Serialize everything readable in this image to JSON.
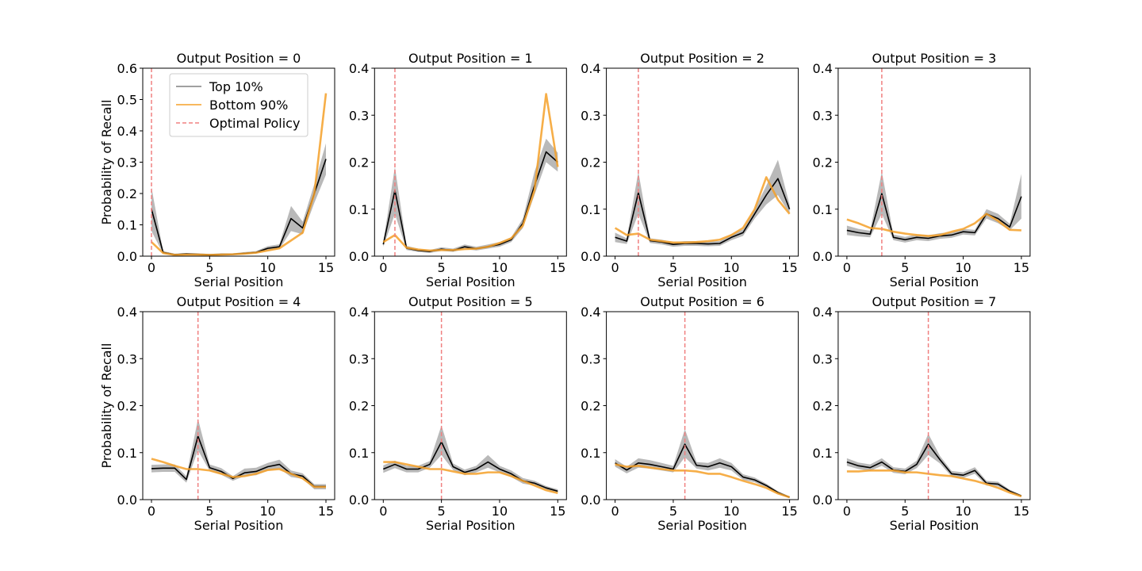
{
  "chart_data": [
    {
      "type": "line",
      "title": "Output Position = 0",
      "xlabel": "Serial Position",
      "ylabel": "Probability of Recall",
      "x": [
        0,
        1,
        2,
        3,
        4,
        5,
        6,
        7,
        8,
        9,
        10,
        11,
        12,
        13,
        14,
        15
      ],
      "xlim": [
        -0.75,
        15.75
      ],
      "xticks": [
        0,
        5,
        10,
        15
      ],
      "ylim": [
        0,
        0.6
      ],
      "yticks": [
        {
          "value": 0,
          "label": "0.0"
        },
        0.1,
        0.2,
        0.3,
        0.4,
        0.5,
        0.6
      ],
      "legend": "upper center",
      "series": [
        {
          "name": "Top 10%",
          "color": "#000000",
          "band_color": "#808080",
          "values": [
            0.15,
            0.012,
            0.005,
            0.007,
            0.006,
            0.004,
            0.006,
            0.006,
            0.009,
            0.012,
            0.025,
            0.03,
            0.12,
            0.09,
            0.2,
            0.31
          ],
          "band": {
            "lower": [
              0.08,
              0.008,
              0.003,
              0.004,
              0.004,
              0.002,
              0.004,
              0.004,
              0.006,
              0.009,
              0.018,
              0.022,
              0.08,
              0.07,
              0.17,
              0.26
            ],
            "upper": [
              0.22,
              0.016,
              0.008,
              0.01,
              0.009,
              0.007,
              0.009,
              0.009,
              0.013,
              0.016,
              0.032,
              0.038,
              0.16,
              0.11,
              0.23,
              0.36
            ]
          }
        },
        {
          "name": "Bottom 90%",
          "color": "#f5a028",
          "values": [
            0.045,
            0.01,
            0.004,
            0.005,
            0.005,
            0.004,
            0.005,
            0.006,
            0.008,
            0.011,
            0.018,
            0.025,
            0.05,
            0.075,
            0.2,
            0.52
          ]
        }
      ],
      "vline": {
        "name": "Optimal Policy",
        "x": 0,
        "color": "#f08080"
      }
    },
    {
      "type": "line",
      "title": "Output Position = 1",
      "xlabel": "Serial Position",
      "x": [
        0,
        1,
        2,
        3,
        4,
        5,
        6,
        7,
        8,
        9,
        10,
        11,
        12,
        13,
        14,
        15
      ],
      "xlim": [
        -0.75,
        15.75
      ],
      "xticks": [
        0,
        5,
        10,
        15
      ],
      "ylim": [
        0,
        0.4
      ],
      "yticks": [
        {
          "value": 0,
          "label": "0.0"
        },
        0.1,
        0.2,
        0.3,
        0.4
      ],
      "series": [
        {
          "color": "#000000",
          "band_color": "#808080",
          "values": [
            0.025,
            0.14,
            0.017,
            0.012,
            0.01,
            0.015,
            0.012,
            0.02,
            0.016,
            0.02,
            0.025,
            0.035,
            0.07,
            0.15,
            0.222,
            0.2
          ],
          "band": {
            "lower": [
              0.02,
              0.09,
              0.013,
              0.009,
              0.007,
              0.011,
              0.009,
              0.015,
              0.012,
              0.016,
              0.02,
              0.03,
              0.06,
              0.13,
              0.2,
              0.18
            ],
            "upper": [
              0.03,
              0.19,
              0.022,
              0.016,
              0.013,
              0.019,
              0.016,
              0.025,
              0.02,
              0.025,
              0.03,
              0.04,
              0.08,
              0.18,
              0.25,
              0.22
            ]
          }
        },
        {
          "color": "#f5a028",
          "values": [
            0.03,
            0.045,
            0.018,
            0.014,
            0.012,
            0.013,
            0.013,
            0.015,
            0.016,
            0.02,
            0.028,
            0.038,
            0.065,
            0.14,
            0.345,
            0.19
          ]
        }
      ],
      "vline": {
        "x": 1,
        "color": "#f08080"
      }
    },
    {
      "type": "line",
      "title": "Output Position = 2",
      "xlabel": "Serial Position",
      "x": [
        0,
        1,
        2,
        3,
        4,
        5,
        6,
        7,
        8,
        9,
        10,
        11,
        12,
        13,
        14,
        15
      ],
      "xlim": [
        -0.75,
        15.75
      ],
      "xticks": [
        0,
        5,
        10,
        15
      ],
      "ylim": [
        0,
        0.4
      ],
      "yticks": [
        {
          "value": 0,
          "label": "0.0"
        },
        0.1,
        0.2,
        0.3,
        0.4
      ],
      "series": [
        {
          "color": "#000000",
          "band_color": "#808080",
          "values": [
            0.04,
            0.032,
            0.135,
            0.033,
            0.03,
            0.025,
            0.027,
            0.027,
            0.026,
            0.027,
            0.04,
            0.05,
            0.09,
            0.13,
            0.165,
            0.1
          ],
          "band": {
            "lower": [
              0.03,
              0.026,
              0.09,
              0.028,
              0.025,
              0.02,
              0.022,
              0.022,
              0.021,
              0.022,
              0.034,
              0.043,
              0.08,
              0.11,
              0.13,
              0.09
            ],
            "upper": [
              0.05,
              0.038,
              0.18,
              0.038,
              0.035,
              0.03,
              0.032,
              0.032,
              0.031,
              0.032,
              0.046,
              0.057,
              0.1,
              0.15,
              0.205,
              0.11
            ]
          }
        },
        {
          "color": "#f5a028",
          "values": [
            0.06,
            0.045,
            0.048,
            0.035,
            0.032,
            0.029,
            0.029,
            0.03,
            0.032,
            0.035,
            0.045,
            0.06,
            0.1,
            0.168,
            0.12,
            0.09
          ]
        }
      ],
      "vline": {
        "x": 2,
        "color": "#f08080"
      }
    },
    {
      "type": "line",
      "title": "Output Position = 3",
      "xlabel": "Serial Position",
      "x": [
        0,
        1,
        2,
        3,
        4,
        5,
        6,
        7,
        8,
        9,
        10,
        11,
        12,
        13,
        14,
        15
      ],
      "xlim": [
        -0.75,
        15.75
      ],
      "xticks": [
        0,
        5,
        10,
        15
      ],
      "ylim": [
        0,
        0.4
      ],
      "yticks": [
        {
          "value": 0,
          "label": "0.0"
        },
        0.1,
        0.2,
        0.3,
        0.4
      ],
      "series": [
        {
          "color": "#000000",
          "band_color": "#808080",
          "values": [
            0.055,
            0.05,
            0.047,
            0.133,
            0.04,
            0.035,
            0.04,
            0.038,
            0.043,
            0.045,
            0.052,
            0.05,
            0.09,
            0.08,
            0.062,
            0.127
          ],
          "band": {
            "lower": [
              0.045,
              0.042,
              0.04,
              0.09,
              0.034,
              0.029,
              0.034,
              0.032,
              0.037,
              0.039,
              0.046,
              0.044,
              0.08,
              0.07,
              0.055,
              0.08
            ],
            "upper": [
              0.065,
              0.058,
              0.054,
              0.18,
              0.046,
              0.041,
              0.046,
              0.044,
              0.049,
              0.051,
              0.058,
              0.056,
              0.1,
              0.09,
              0.069,
              0.175
            ]
          }
        },
        {
          "color": "#f5a028",
          "values": [
            0.078,
            0.07,
            0.06,
            0.058,
            0.052,
            0.048,
            0.045,
            0.043,
            0.045,
            0.052,
            0.058,
            0.07,
            0.09,
            0.075,
            0.056,
            0.055
          ]
        }
      ],
      "vline": {
        "x": 3,
        "color": "#f08080"
      }
    },
    {
      "type": "line",
      "title": "Output Position = 4",
      "xlabel": "Serial Position",
      "ylabel": "Probability of Recall",
      "x": [
        0,
        1,
        2,
        3,
        4,
        5,
        6,
        7,
        8,
        9,
        10,
        11,
        12,
        13,
        14,
        15
      ],
      "xlim": [
        -0.75,
        15.75
      ],
      "xticks": [
        0,
        5,
        10,
        15
      ],
      "ylim": [
        0,
        0.4
      ],
      "yticks": [
        {
          "value": 0,
          "label": "0.0"
        },
        0.1,
        0.2,
        0.3,
        0.4
      ],
      "series": [
        {
          "color": "#000000",
          "band_color": "#808080",
          "values": [
            0.066,
            0.067,
            0.067,
            0.043,
            0.135,
            0.068,
            0.06,
            0.045,
            0.057,
            0.06,
            0.07,
            0.075,
            0.055,
            0.05,
            0.028,
            0.028
          ],
          "band": {
            "lower": [
              0.058,
              0.059,
              0.059,
              0.036,
              0.105,
              0.061,
              0.053,
              0.04,
              0.05,
              0.052,
              0.062,
              0.066,
              0.048,
              0.044,
              0.022,
              0.022
            ],
            "upper": [
              0.074,
              0.075,
              0.075,
              0.05,
              0.172,
              0.075,
              0.067,
              0.05,
              0.066,
              0.068,
              0.078,
              0.085,
              0.062,
              0.056,
              0.033,
              0.033
            ]
          }
        },
        {
          "color": "#f5a028",
          "values": [
            0.087,
            0.08,
            0.072,
            0.065,
            0.065,
            0.062,
            0.055,
            0.048,
            0.05,
            0.055,
            0.063,
            0.065,
            0.055,
            0.045,
            0.027,
            0.027
          ]
        }
      ],
      "vline": {
        "x": 4,
        "color": "#f08080"
      }
    },
    {
      "type": "line",
      "title": "Output Position = 5",
      "xlabel": "Serial Position",
      "x": [
        0,
        1,
        2,
        3,
        4,
        5,
        6,
        7,
        8,
        9,
        10,
        11,
        12,
        13,
        14,
        15
      ],
      "xlim": [
        -0.75,
        15.75
      ],
      "xticks": [
        0,
        5,
        10,
        15
      ],
      "ylim": [
        0,
        0.4
      ],
      "yticks": [
        {
          "value": 0,
          "label": "0.0"
        },
        0.1,
        0.2,
        0.3,
        0.4
      ],
      "series": [
        {
          "color": "#000000",
          "band_color": "#808080",
          "values": [
            0.065,
            0.075,
            0.065,
            0.065,
            0.075,
            0.123,
            0.07,
            0.058,
            0.065,
            0.08,
            0.065,
            0.055,
            0.04,
            0.035,
            0.025,
            0.018
          ],
          "band": {
            "lower": [
              0.057,
              0.067,
              0.058,
              0.058,
              0.068,
              0.095,
              0.063,
              0.052,
              0.058,
              0.068,
              0.058,
              0.048,
              0.034,
              0.03,
              0.021,
              0.014
            ],
            "upper": [
              0.073,
              0.083,
              0.072,
              0.072,
              0.082,
              0.158,
              0.077,
              0.064,
              0.072,
              0.095,
              0.072,
              0.062,
              0.046,
              0.04,
              0.029,
              0.022
            ]
          }
        },
        {
          "color": "#f5a028",
          "values": [
            0.08,
            0.08,
            0.075,
            0.07,
            0.065,
            0.065,
            0.06,
            0.055,
            0.055,
            0.058,
            0.058,
            0.05,
            0.04,
            0.03,
            0.02,
            0.014
          ]
        }
      ],
      "vline": {
        "x": 5,
        "color": "#f08080"
      }
    },
    {
      "type": "line",
      "title": "Output Position = 6",
      "xlabel": "Serial Position",
      "x": [
        0,
        1,
        2,
        3,
        4,
        5,
        6,
        7,
        8,
        9,
        10,
        11,
        12,
        13,
        14,
        15
      ],
      "xlim": [
        -0.75,
        15.75
      ],
      "xticks": [
        0,
        5,
        10,
        15
      ],
      "ylim": [
        0,
        0.4
      ],
      "yticks": [
        {
          "value": 0,
          "label": "0.0"
        },
        0.1,
        0.2,
        0.3,
        0.4
      ],
      "series": [
        {
          "color": "#000000",
          "band_color": "#808080",
          "values": [
            0.078,
            0.063,
            0.078,
            0.075,
            0.07,
            0.065,
            0.118,
            0.073,
            0.07,
            0.078,
            0.07,
            0.048,
            0.042,
            0.03,
            0.015,
            0.005
          ],
          "band": {
            "lower": [
              0.07,
              0.056,
              0.068,
              0.066,
              0.062,
              0.058,
              0.09,
              0.066,
              0.062,
              0.068,
              0.062,
              0.042,
              0.037,
              0.026,
              0.012,
              0.003
            ],
            "upper": [
              0.086,
              0.07,
              0.088,
              0.084,
              0.078,
              0.072,
              0.15,
              0.08,
              0.078,
              0.088,
              0.078,
              0.054,
              0.047,
              0.034,
              0.018,
              0.007
            ]
          }
        },
        {
          "color": "#f5a028",
          "values": [
            0.075,
            0.07,
            0.072,
            0.068,
            0.065,
            0.062,
            0.062,
            0.06,
            0.055,
            0.055,
            0.048,
            0.04,
            0.033,
            0.025,
            0.013,
            0.005
          ]
        }
      ],
      "vline": {
        "x": 6,
        "color": "#f08080"
      }
    },
    {
      "type": "line",
      "title": "Output Position = 7",
      "xlabel": "Serial Position",
      "x": [
        0,
        1,
        2,
        3,
        4,
        5,
        6,
        7,
        8,
        9,
        10,
        11,
        12,
        13,
        14,
        15
      ],
      "xlim": [
        -0.75,
        15.75
      ],
      "xticks": [
        0,
        5,
        10,
        15
      ],
      "ylim": [
        0,
        0.4
      ],
      "yticks": [
        {
          "value": 0,
          "label": "0.0"
        },
        0.1,
        0.2,
        0.3,
        0.4
      ],
      "series": [
        {
          "color": "#000000",
          "band_color": "#808080",
          "values": [
            0.08,
            0.072,
            0.068,
            0.08,
            0.063,
            0.06,
            0.075,
            0.118,
            0.085,
            0.055,
            0.052,
            0.062,
            0.035,
            0.033,
            0.018,
            0.008
          ],
          "band": {
            "lower": [
              0.072,
              0.065,
              0.061,
              0.072,
              0.057,
              0.054,
              0.067,
              0.095,
              0.077,
              0.049,
              0.046,
              0.055,
              0.03,
              0.028,
              0.015,
              0.006
            ],
            "upper": [
              0.088,
              0.079,
              0.075,
              0.088,
              0.069,
              0.066,
              0.083,
              0.14,
              0.093,
              0.061,
              0.058,
              0.069,
              0.04,
              0.038,
              0.021,
              0.01
            ]
          }
        },
        {
          "color": "#f5a028",
          "values": [
            0.06,
            0.06,
            0.062,
            0.062,
            0.062,
            0.058,
            0.058,
            0.055,
            0.052,
            0.05,
            0.045,
            0.04,
            0.033,
            0.025,
            0.015,
            0.007
          ]
        }
      ],
      "vline": {
        "x": 7,
        "color": "#f08080"
      }
    }
  ]
}
